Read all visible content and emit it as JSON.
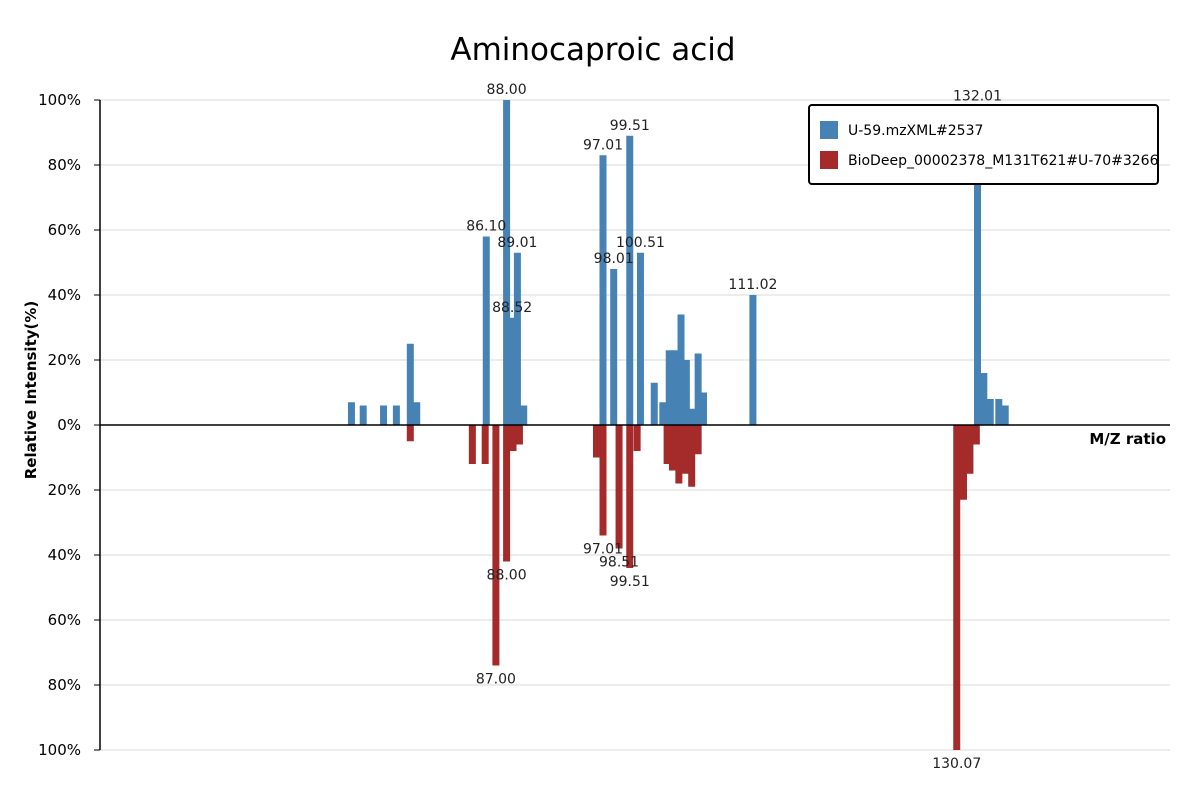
{
  "chart_data": {
    "type": "bar",
    "title": "Aminocaproic acid",
    "xlabel": "M/Z ratio",
    "ylabel": "Relative Intensity(%)",
    "ylim": [
      -100,
      100
    ],
    "xlim": [
      50,
      150
    ],
    "yticks": [
      {
        "value": 100,
        "label": "100%"
      },
      {
        "value": 80,
        "label": "80%"
      },
      {
        "value": 60,
        "label": "60%"
      },
      {
        "value": 40,
        "label": "40%"
      },
      {
        "value": 20,
        "label": "20%"
      },
      {
        "value": 0,
        "label": "0%"
      },
      {
        "value": -20,
        "label": "20%"
      },
      {
        "value": -40,
        "label": "40%"
      },
      {
        "value": -60,
        "label": "60%"
      },
      {
        "value": -80,
        "label": "80%"
      },
      {
        "value": -100,
        "label": "100%"
      }
    ],
    "grid": true,
    "legend_position": "top-right",
    "series": [
      {
        "name": "U-59.mzXML#2537",
        "color": "#4682B4",
        "direction": "up",
        "points": [
          {
            "mz": 73.5,
            "intensity": 7
          },
          {
            "mz": 74.6,
            "intensity": 6
          },
          {
            "mz": 76.5,
            "intensity": 6
          },
          {
            "mz": 77.7,
            "intensity": 6
          },
          {
            "mz": 79.0,
            "intensity": 25
          },
          {
            "mz": 79.6,
            "intensity": 7
          },
          {
            "mz": 86.1,
            "intensity": 58,
            "label": "86.10"
          },
          {
            "mz": 88.0,
            "intensity": 100,
            "label": "88.00"
          },
          {
            "mz": 88.52,
            "intensity": 33,
            "label": "88.52"
          },
          {
            "mz": 89.01,
            "intensity": 53,
            "label": "89.01"
          },
          {
            "mz": 89.6,
            "intensity": 6
          },
          {
            "mz": 97.01,
            "intensity": 83,
            "label": "97.01"
          },
          {
            "mz": 98.01,
            "intensity": 48,
            "label": "98.01"
          },
          {
            "mz": 99.51,
            "intensity": 89,
            "label": "99.51"
          },
          {
            "mz": 100.51,
            "intensity": 53,
            "label": "100.51"
          },
          {
            "mz": 101.8,
            "intensity": 13
          },
          {
            "mz": 102.6,
            "intensity": 7
          },
          {
            "mz": 103.2,
            "intensity": 23
          },
          {
            "mz": 103.8,
            "intensity": 23
          },
          {
            "mz": 104.3,
            "intensity": 34
          },
          {
            "mz": 104.8,
            "intensity": 20
          },
          {
            "mz": 105.3,
            "intensity": 5
          },
          {
            "mz": 105.9,
            "intensity": 22
          },
          {
            "mz": 106.4,
            "intensity": 10
          },
          {
            "mz": 111.02,
            "intensity": 40,
            "label": "111.02"
          },
          {
            "mz": 132.01,
            "intensity": 98,
            "label": "132.01"
          },
          {
            "mz": 132.6,
            "intensity": 16
          },
          {
            "mz": 133.2,
            "intensity": 8
          },
          {
            "mz": 134.0,
            "intensity": 8
          },
          {
            "mz": 134.6,
            "intensity": 6
          }
        ]
      },
      {
        "name": "BioDeep_00002378_M131T621#U-70#3266",
        "color": "#A52A2A",
        "direction": "down",
        "points": [
          {
            "mz": 79.0,
            "intensity": 5
          },
          {
            "mz": 84.8,
            "intensity": 12
          },
          {
            "mz": 86.0,
            "intensity": 12
          },
          {
            "mz": 87.0,
            "intensity": 74,
            "label": "87.00"
          },
          {
            "mz": 88.0,
            "intensity": 42,
            "label": "88.00"
          },
          {
            "mz": 88.6,
            "intensity": 8
          },
          {
            "mz": 89.2,
            "intensity": 6
          },
          {
            "mz": 96.4,
            "intensity": 10
          },
          {
            "mz": 97.01,
            "intensity": 34,
            "label": "97.01"
          },
          {
            "mz": 98.51,
            "intensity": 38,
            "label": "98.51"
          },
          {
            "mz": 99.51,
            "intensity": 44,
            "label": "99.51"
          },
          {
            "mz": 100.2,
            "intensity": 8
          },
          {
            "mz": 103.0,
            "intensity": 12
          },
          {
            "mz": 103.5,
            "intensity": 14
          },
          {
            "mz": 104.1,
            "intensity": 18
          },
          {
            "mz": 104.7,
            "intensity": 15
          },
          {
            "mz": 105.3,
            "intensity": 19
          },
          {
            "mz": 105.9,
            "intensity": 9
          },
          {
            "mz": 130.07,
            "intensity": 100,
            "label": "130.07"
          },
          {
            "mz": 130.7,
            "intensity": 23
          },
          {
            "mz": 131.3,
            "intensity": 15
          },
          {
            "mz": 131.9,
            "intensity": 6
          }
        ]
      }
    ]
  }
}
